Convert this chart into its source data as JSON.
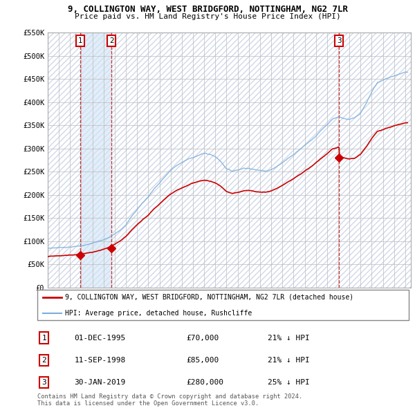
{
  "title_line1": "9, COLLINGTON WAY, WEST BRIDGFORD, NOTTINGHAM, NG2 7LR",
  "title_line2": "Price paid vs. HM Land Registry's House Price Index (HPI)",
  "ylabel_ticks": [
    "£0",
    "£50K",
    "£100K",
    "£150K",
    "£200K",
    "£250K",
    "£300K",
    "£350K",
    "£400K",
    "£450K",
    "£500K",
    "£550K"
  ],
  "ytick_values": [
    0,
    50000,
    100000,
    150000,
    200000,
    250000,
    300000,
    350000,
    400000,
    450000,
    500000,
    550000
  ],
  "sales": [
    {
      "label": "1",
      "date_num": 1995.92,
      "price": 70000,
      "hpi_pct": "21% ↓ HPI",
      "date_str": "01-DEC-1995"
    },
    {
      "label": "2",
      "date_num": 1998.7,
      "price": 85000,
      "hpi_pct": "21% ↓ HPI",
      "date_str": "11-SEP-1998"
    },
    {
      "label": "3",
      "date_num": 2019.08,
      "price": 280000,
      "hpi_pct": "25% ↓ HPI",
      "date_str": "30-JAN-2019"
    }
  ],
  "property_line_color": "#cc0000",
  "hpi_line_color": "#7aaddb",
  "sale_marker_color": "#cc0000",
  "sale_vline_color": "#cc0000",
  "label_box_color": "#cc0000",
  "xmin": 1993.0,
  "xmax": 2025.5,
  "ymin": 0,
  "ymax": 550000,
  "legend_property": "9, COLLINGTON WAY, WEST BRIDGFORD, NOTTINGHAM, NG2 7LR (detached house)",
  "legend_hpi": "HPI: Average price, detached house, Rushcliffe",
  "footer": "Contains HM Land Registry data © Crown copyright and database right 2024.\nThis data is licensed under the Open Government Licence v3.0."
}
